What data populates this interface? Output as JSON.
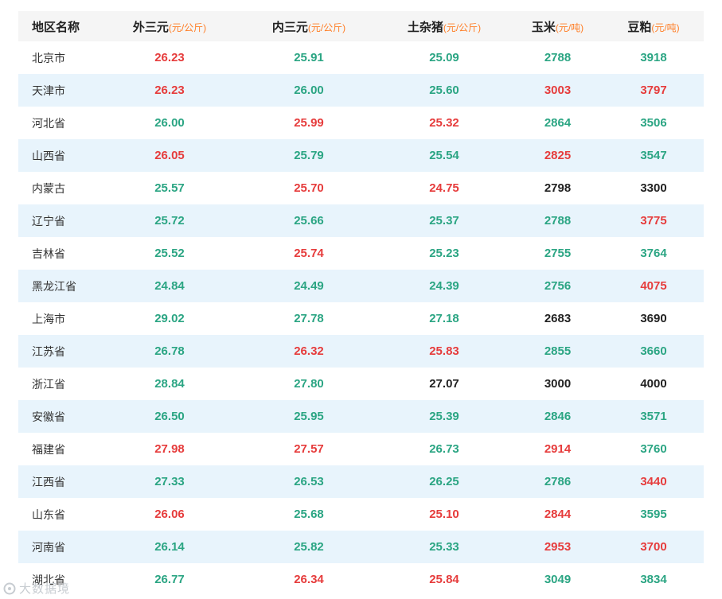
{
  "colors": {
    "red": "#e63c3c",
    "green": "#2ba583",
    "dark": "#222222",
    "orange": "#ff7e26",
    "row-alt": "#e8f4fc",
    "header-bg": "#f5f5f5",
    "region-text": "#333333"
  },
  "watermark": {
    "text": "大数据境"
  },
  "table": {
    "headers": [
      {
        "label": "地区名称",
        "unit": ""
      },
      {
        "label": "外三元",
        "unit": "(元/公斤)"
      },
      {
        "label": "内三元",
        "unit": "(元/公斤)"
      },
      {
        "label": "土杂猪",
        "unit": "(元/公斤)"
      },
      {
        "label": "玉米",
        "unit": "(元/吨)"
      },
      {
        "label": "豆粕",
        "unit": "(元/吨)"
      }
    ],
    "rows": [
      {
        "region": "北京市",
        "values": [
          {
            "v": "26.23",
            "c": "red"
          },
          {
            "v": "25.91",
            "c": "green"
          },
          {
            "v": "25.09",
            "c": "green"
          },
          {
            "v": "2788",
            "c": "green"
          },
          {
            "v": "3918",
            "c": "green"
          }
        ]
      },
      {
        "region": "天津市",
        "values": [
          {
            "v": "26.23",
            "c": "red"
          },
          {
            "v": "26.00",
            "c": "green"
          },
          {
            "v": "25.60",
            "c": "green"
          },
          {
            "v": "3003",
            "c": "red"
          },
          {
            "v": "3797",
            "c": "red"
          }
        ]
      },
      {
        "region": "河北省",
        "values": [
          {
            "v": "26.00",
            "c": "green"
          },
          {
            "v": "25.99",
            "c": "red"
          },
          {
            "v": "25.32",
            "c": "red"
          },
          {
            "v": "2864",
            "c": "green"
          },
          {
            "v": "3506",
            "c": "green"
          }
        ]
      },
      {
        "region": "山西省",
        "values": [
          {
            "v": "26.05",
            "c": "red"
          },
          {
            "v": "25.79",
            "c": "green"
          },
          {
            "v": "25.54",
            "c": "green"
          },
          {
            "v": "2825",
            "c": "red"
          },
          {
            "v": "3547",
            "c": "green"
          }
        ]
      },
      {
        "region": "内蒙古",
        "values": [
          {
            "v": "25.57",
            "c": "green"
          },
          {
            "v": "25.70",
            "c": "red"
          },
          {
            "v": "24.75",
            "c": "red"
          },
          {
            "v": "2798",
            "c": "dark"
          },
          {
            "v": "3300",
            "c": "dark"
          }
        ]
      },
      {
        "region": "辽宁省",
        "values": [
          {
            "v": "25.72",
            "c": "green"
          },
          {
            "v": "25.66",
            "c": "green"
          },
          {
            "v": "25.37",
            "c": "green"
          },
          {
            "v": "2788",
            "c": "green"
          },
          {
            "v": "3775",
            "c": "red"
          }
        ]
      },
      {
        "region": "吉林省",
        "values": [
          {
            "v": "25.52",
            "c": "green"
          },
          {
            "v": "25.74",
            "c": "red"
          },
          {
            "v": "25.23",
            "c": "green"
          },
          {
            "v": "2755",
            "c": "green"
          },
          {
            "v": "3764",
            "c": "green"
          }
        ]
      },
      {
        "region": "黑龙江省",
        "values": [
          {
            "v": "24.84",
            "c": "green"
          },
          {
            "v": "24.49",
            "c": "green"
          },
          {
            "v": "24.39",
            "c": "green"
          },
          {
            "v": "2756",
            "c": "green"
          },
          {
            "v": "4075",
            "c": "red"
          }
        ]
      },
      {
        "region": "上海市",
        "values": [
          {
            "v": "29.02",
            "c": "green"
          },
          {
            "v": "27.78",
            "c": "green"
          },
          {
            "v": "27.18",
            "c": "green"
          },
          {
            "v": "2683",
            "c": "dark"
          },
          {
            "v": "3690",
            "c": "dark"
          }
        ]
      },
      {
        "region": "江苏省",
        "values": [
          {
            "v": "26.78",
            "c": "green"
          },
          {
            "v": "26.32",
            "c": "red"
          },
          {
            "v": "25.83",
            "c": "red"
          },
          {
            "v": "2855",
            "c": "green"
          },
          {
            "v": "3660",
            "c": "green"
          }
        ]
      },
      {
        "region": "浙江省",
        "values": [
          {
            "v": "28.84",
            "c": "green"
          },
          {
            "v": "27.80",
            "c": "green"
          },
          {
            "v": "27.07",
            "c": "dark"
          },
          {
            "v": "3000",
            "c": "dark"
          },
          {
            "v": "4000",
            "c": "dark"
          }
        ]
      },
      {
        "region": "安徽省",
        "values": [
          {
            "v": "26.50",
            "c": "green"
          },
          {
            "v": "25.95",
            "c": "green"
          },
          {
            "v": "25.39",
            "c": "green"
          },
          {
            "v": "2846",
            "c": "green"
          },
          {
            "v": "3571",
            "c": "green"
          }
        ]
      },
      {
        "region": "福建省",
        "values": [
          {
            "v": "27.98",
            "c": "red"
          },
          {
            "v": "27.57",
            "c": "red"
          },
          {
            "v": "26.73",
            "c": "green"
          },
          {
            "v": "2914",
            "c": "red"
          },
          {
            "v": "3760",
            "c": "green"
          }
        ]
      },
      {
        "region": "江西省",
        "values": [
          {
            "v": "27.33",
            "c": "green"
          },
          {
            "v": "26.53",
            "c": "green"
          },
          {
            "v": "26.25",
            "c": "green"
          },
          {
            "v": "2786",
            "c": "green"
          },
          {
            "v": "3440",
            "c": "red"
          }
        ]
      },
      {
        "region": "山东省",
        "values": [
          {
            "v": "26.06",
            "c": "red"
          },
          {
            "v": "25.68",
            "c": "green"
          },
          {
            "v": "25.10",
            "c": "red"
          },
          {
            "v": "2844",
            "c": "red"
          },
          {
            "v": "3595",
            "c": "green"
          }
        ]
      },
      {
        "region": "河南省",
        "values": [
          {
            "v": "26.14",
            "c": "green"
          },
          {
            "v": "25.82",
            "c": "green"
          },
          {
            "v": "25.33",
            "c": "green"
          },
          {
            "v": "2953",
            "c": "red"
          },
          {
            "v": "3700",
            "c": "red"
          }
        ]
      },
      {
        "region": "湖北省",
        "values": [
          {
            "v": "26.77",
            "c": "green"
          },
          {
            "v": "26.34",
            "c": "red"
          },
          {
            "v": "25.84",
            "c": "red"
          },
          {
            "v": "3049",
            "c": "green"
          },
          {
            "v": "3834",
            "c": "green"
          }
        ]
      }
    ]
  }
}
